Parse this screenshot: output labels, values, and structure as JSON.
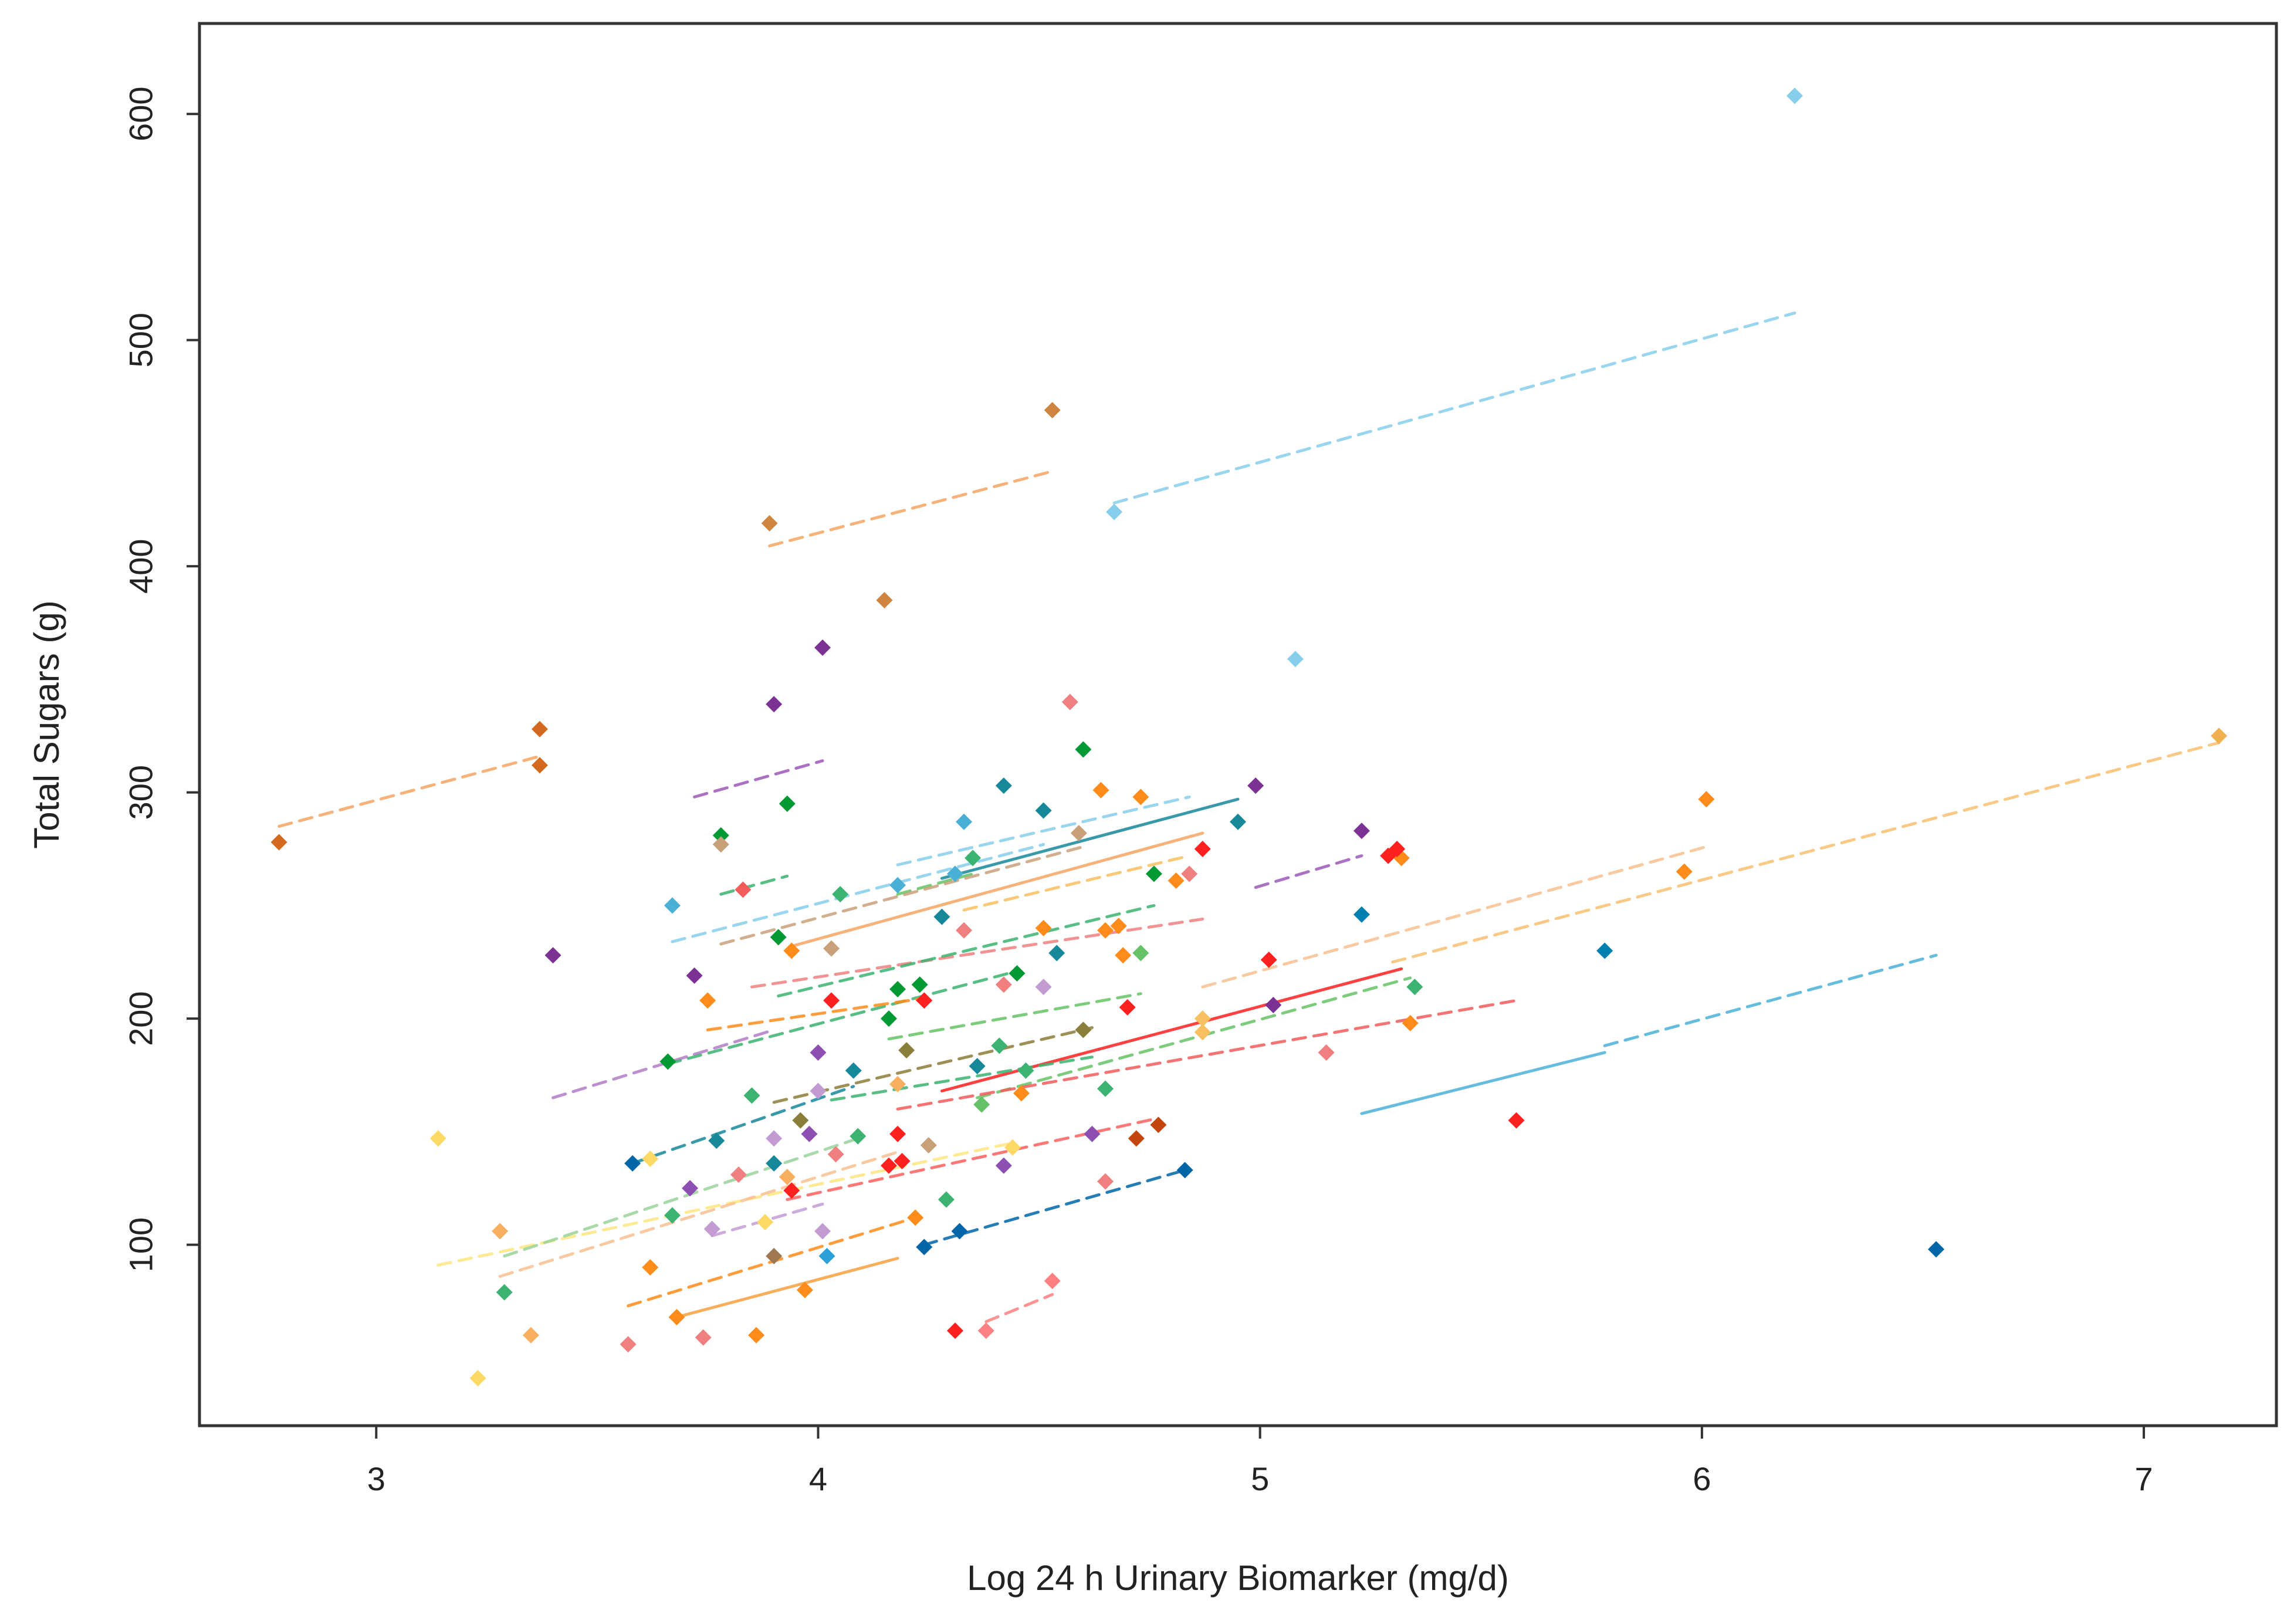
{
  "chart_data": {
    "type": "scatter",
    "title": "",
    "xlabel": "Log 24 h Urinary Biomarker (mg/d)",
    "ylabel": "Total Sugars (g)",
    "xlim": [
      2.6,
      7.3
    ],
    "ylim": [
      20,
      640
    ],
    "x_ticks": [
      3,
      4,
      5,
      6,
      7
    ],
    "y_ticks": [
      100,
      200,
      300,
      400,
      500,
      600
    ],
    "grid": false,
    "legend": "none",
    "points": [
      {
        "x": 6.21,
        "y": 608,
        "c": "#87ceeb"
      },
      {
        "x": 4.67,
        "y": 424,
        "c": "#87ceeb"
      },
      {
        "x": 5.08,
        "y": 359,
        "c": "#87ceeb"
      },
      {
        "x": 4.53,
        "y": 469,
        "c": "#cd853f"
      },
      {
        "x": 3.89,
        "y": 419,
        "c": "#cd853f"
      },
      {
        "x": 4.15,
        "y": 385,
        "c": "#cd853f"
      },
      {
        "x": 2.78,
        "y": 278,
        "c": "#d2691e"
      },
      {
        "x": 3.37,
        "y": 328,
        "c": "#d2691e"
      },
      {
        "x": 3.37,
        "y": 312,
        "c": "#d2691e"
      },
      {
        "x": 4.01,
        "y": 364,
        "c": "#7b3294"
      },
      {
        "x": 3.9,
        "y": 339,
        "c": "#7b3294"
      },
      {
        "x": 3.4,
        "y": 228,
        "c": "#7b3294"
      },
      {
        "x": 3.72,
        "y": 219,
        "c": "#7b3294"
      },
      {
        "x": 4.99,
        "y": 303,
        "c": "#7b3294"
      },
      {
        "x": 5.23,
        "y": 283,
        "c": "#7b3294"
      },
      {
        "x": 5.03,
        "y": 206,
        "c": "#7b3294"
      },
      {
        "x": 4.6,
        "y": 319,
        "c": "#009933"
      },
      {
        "x": 3.93,
        "y": 295,
        "c": "#009933"
      },
      {
        "x": 3.78,
        "y": 281,
        "c": "#009933"
      },
      {
        "x": 4.76,
        "y": 264,
        "c": "#009933"
      },
      {
        "x": 3.91,
        "y": 236,
        "c": "#009933"
      },
      {
        "x": 3.66,
        "y": 181,
        "c": "#009933"
      },
      {
        "x": 4.18,
        "y": 213,
        "c": "#009933"
      },
      {
        "x": 4.23,
        "y": 215,
        "c": "#009933"
      },
      {
        "x": 4.16,
        "y": 200,
        "c": "#009933"
      },
      {
        "x": 4.45,
        "y": 220,
        "c": "#009933"
      },
      {
        "x": 4.42,
        "y": 303,
        "c": "#17879a"
      },
      {
        "x": 4.51,
        "y": 292,
        "c": "#17879a"
      },
      {
        "x": 4.95,
        "y": 287,
        "c": "#17879a"
      },
      {
        "x": 4.28,
        "y": 245,
        "c": "#17879a"
      },
      {
        "x": 4.36,
        "y": 179,
        "c": "#17879a"
      },
      {
        "x": 4.54,
        "y": 229,
        "c": "#17879a"
      },
      {
        "x": 3.77,
        "y": 146,
        "c": "#17879a"
      },
      {
        "x": 3.9,
        "y": 136,
        "c": "#17879a"
      },
      {
        "x": 4.08,
        "y": 177,
        "c": "#17879a"
      },
      {
        "x": 4.33,
        "y": 287,
        "c": "#4bb0d6"
      },
      {
        "x": 3.67,
        "y": 250,
        "c": "#4bb0d6"
      },
      {
        "x": 4.18,
        "y": 259,
        "c": "#4bb0d6"
      },
      {
        "x": 4.31,
        "y": 264,
        "c": "#4bb0d6"
      },
      {
        "x": 5.23,
        "y": 246,
        "c": "#0080b0"
      },
      {
        "x": 5.78,
        "y": 230,
        "c": "#0080b0"
      },
      {
        "x": 6.53,
        "y": 98,
        "c": "#0066a8"
      },
      {
        "x": 4.83,
        "y": 133,
        "c": "#0066a8"
      },
      {
        "x": 4.32,
        "y": 106,
        "c": "#0066a8"
      },
      {
        "x": 4.24,
        "y": 99,
        "c": "#0066a8"
      },
      {
        "x": 3.58,
        "y": 136,
        "c": "#0066a8"
      },
      {
        "x": 4.02,
        "y": 95,
        "c": "#2ba0d9"
      },
      {
        "x": 4.64,
        "y": 301,
        "c": "#ff8c1a"
      },
      {
        "x": 4.73,
        "y": 298,
        "c": "#ff8c1a"
      },
      {
        "x": 4.81,
        "y": 261,
        "c": "#ff8c1a"
      },
      {
        "x": 4.51,
        "y": 240,
        "c": "#ff8c1a"
      },
      {
        "x": 4.65,
        "y": 239,
        "c": "#ff8c1a"
      },
      {
        "x": 4.68,
        "y": 241,
        "c": "#ff8c1a"
      },
      {
        "x": 4.69,
        "y": 228,
        "c": "#ff8c1a"
      },
      {
        "x": 6.01,
        "y": 297,
        "c": "#ff8c1a"
      },
      {
        "x": 5.96,
        "y": 265,
        "c": "#ff8c1a"
      },
      {
        "x": 5.32,
        "y": 271,
        "c": "#ff8c1a"
      },
      {
        "x": 5.34,
        "y": 198,
        "c": "#ff8c1a"
      },
      {
        "x": 3.94,
        "y": 230,
        "c": "#ff8c1a"
      },
      {
        "x": 3.75,
        "y": 208,
        "c": "#ff8c1a"
      },
      {
        "x": 4.46,
        "y": 167,
        "c": "#ff8c1a"
      },
      {
        "x": 4.22,
        "y": 112,
        "c": "#ff8c1a"
      },
      {
        "x": 3.62,
        "y": 90,
        "c": "#ff8c1a"
      },
      {
        "x": 3.97,
        "y": 80,
        "c": "#ff8c1a"
      },
      {
        "x": 3.68,
        "y": 68,
        "c": "#ff8c1a"
      },
      {
        "x": 3.86,
        "y": 60,
        "c": "#ff8c1a"
      },
      {
        "x": 4.87,
        "y": 275,
        "c": "#ff2020"
      },
      {
        "x": 5.29,
        "y": 272,
        "c": "#ff2020"
      },
      {
        "x": 5.31,
        "y": 275,
        "c": "#ff2020"
      },
      {
        "x": 5.02,
        "y": 226,
        "c": "#ff2020"
      },
      {
        "x": 4.7,
        "y": 205,
        "c": "#ff2020"
      },
      {
        "x": 4.24,
        "y": 208,
        "c": "#ff2020"
      },
      {
        "x": 4.03,
        "y": 208,
        "c": "#ff2020"
      },
      {
        "x": 4.18,
        "y": 149,
        "c": "#ff2020"
      },
      {
        "x": 4.16,
        "y": 135,
        "c": "#ff2020"
      },
      {
        "x": 4.19,
        "y": 137,
        "c": "#ff2020"
      },
      {
        "x": 3.94,
        "y": 124,
        "c": "#ff2020"
      },
      {
        "x": 5.58,
        "y": 155,
        "c": "#ff2020"
      },
      {
        "x": 4.31,
        "y": 62,
        "c": "#ff2020"
      },
      {
        "x": 3.83,
        "y": 257,
        "c": "#f25c5c"
      },
      {
        "x": 4.72,
        "y": 147,
        "c": "#c4440e"
      },
      {
        "x": 4.77,
        "y": 153,
        "c": "#c4440e"
      },
      {
        "x": 4.38,
        "y": 62,
        "c": "#ff8080"
      },
      {
        "x": 4.53,
        "y": 84,
        "c": "#ff8080"
      },
      {
        "x": 4.57,
        "y": 340,
        "c": "#f08080"
      },
      {
        "x": 4.84,
        "y": 264,
        "c": "#f08080"
      },
      {
        "x": 4.33,
        "y": 239,
        "c": "#f08080"
      },
      {
        "x": 4.42,
        "y": 215,
        "c": "#f08080"
      },
      {
        "x": 4.04,
        "y": 140,
        "c": "#f08080"
      },
      {
        "x": 3.82,
        "y": 131,
        "c": "#f08080"
      },
      {
        "x": 4.65,
        "y": 128,
        "c": "#f08080"
      },
      {
        "x": 5.15,
        "y": 185,
        "c": "#f08080"
      },
      {
        "x": 3.57,
        "y": 56,
        "c": "#f08080"
      },
      {
        "x": 3.74,
        "y": 59,
        "c": "#f08080"
      },
      {
        "x": 4.59,
        "y": 282,
        "c": "#c8a07a"
      },
      {
        "x": 4.03,
        "y": 231,
        "c": "#c8a07a"
      },
      {
        "x": 3.78,
        "y": 277,
        "c": "#c8a07a"
      },
      {
        "x": 4.25,
        "y": 144,
        "c": "#c8a07a"
      },
      {
        "x": 3.9,
        "y": 95,
        "c": "#a07850"
      },
      {
        "x": 3.96,
        "y": 155,
        "c": "#8b7d3a"
      },
      {
        "x": 4.6,
        "y": 195,
        "c": "#8b7d3a"
      },
      {
        "x": 4.2,
        "y": 186,
        "c": "#8b7d3a"
      },
      {
        "x": 4.73,
        "y": 229,
        "c": "#66c266"
      },
      {
        "x": 4.35,
        "y": 271,
        "c": "#3cb371"
      },
      {
        "x": 4.05,
        "y": 255,
        "c": "#3cb371"
      },
      {
        "x": 3.85,
        "y": 166,
        "c": "#3cb371"
      },
      {
        "x": 4.41,
        "y": 188,
        "c": "#3cb371"
      },
      {
        "x": 4.47,
        "y": 177,
        "c": "#3cb371"
      },
      {
        "x": 4.65,
        "y": 169,
        "c": "#3cb371"
      },
      {
        "x": 4.09,
        "y": 148,
        "c": "#3cb371"
      },
      {
        "x": 4.29,
        "y": 120,
        "c": "#3cb371"
      },
      {
        "x": 3.67,
        "y": 113,
        "c": "#3cb371"
      },
      {
        "x": 3.29,
        "y": 79,
        "c": "#3cb371"
      },
      {
        "x": 5.35,
        "y": 214,
        "c": "#3cb371"
      },
      {
        "x": 4.37,
        "y": 162,
        "c": "#66c266"
      },
      {
        "x": 4.0,
        "y": 185,
        "c": "#8e4fb3"
      },
      {
        "x": 3.98,
        "y": 149,
        "c": "#8e4fb3"
      },
      {
        "x": 4.62,
        "y": 149,
        "c": "#8e4fb3"
      },
      {
        "x": 4.42,
        "y": 135,
        "c": "#8e4fb3"
      },
      {
        "x": 3.71,
        "y": 125,
        "c": "#8e4fb3"
      },
      {
        "x": 4.51,
        "y": 214,
        "c": "#c39bd3"
      },
      {
        "x": 4.0,
        "y": 168,
        "c": "#c39bd3"
      },
      {
        "x": 3.9,
        "y": 147,
        "c": "#c39bd3"
      },
      {
        "x": 4.01,
        "y": 106,
        "c": "#c39bd3"
      },
      {
        "x": 3.76,
        "y": 107,
        "c": "#c39bd3"
      },
      {
        "x": 3.14,
        "y": 147,
        "c": "#ffd966"
      },
      {
        "x": 3.23,
        "y": 41,
        "c": "#ffd966"
      },
      {
        "x": 4.44,
        "y": 143,
        "c": "#ffd966"
      },
      {
        "x": 3.62,
        "y": 138,
        "c": "#ffd966"
      },
      {
        "x": 3.88,
        "y": 110,
        "c": "#ffd966"
      },
      {
        "x": 7.17,
        "y": 325,
        "c": "#f0b050"
      },
      {
        "x": 4.87,
        "y": 200,
        "c": "#f8c060"
      },
      {
        "x": 4.87,
        "y": 194,
        "c": "#f8c060"
      },
      {
        "x": 3.28,
        "y": 106,
        "c": "#f8b060"
      },
      {
        "x": 3.35,
        "y": 60,
        "c": "#f8b060"
      },
      {
        "x": 3.93,
        "y": 130,
        "c": "#f8b060"
      },
      {
        "x": 4.18,
        "y": 171,
        "c": "#f8b060"
      }
    ],
    "trend_lines": [
      {
        "x0": 4.67,
        "y0": 428,
        "x1": 6.21,
        "y1": 512,
        "c": "#87ceeb",
        "dash": true
      },
      {
        "x0": 3.89,
        "y0": 409,
        "x1": 4.53,
        "y1": 442,
        "c": "#f4a460",
        "dash": true
      },
      {
        "x0": 2.78,
        "y0": 285,
        "x1": 3.37,
        "y1": 316,
        "c": "#f4a460",
        "dash": true
      },
      {
        "x0": 3.72,
        "y0": 298,
        "x1": 4.01,
        "y1": 314,
        "c": "#9b59b6",
        "dash": true
      },
      {
        "x0": 3.4,
        "y0": 165,
        "x1": 3.9,
        "y1": 195,
        "c": "#b07cc6",
        "dash": true
      },
      {
        "x0": 4.99,
        "y0": 258,
        "x1": 5.23,
        "y1": 272,
        "c": "#9b59b6",
        "dash": true
      },
      {
        "x0": 3.67,
        "y0": 234,
        "x1": 4.51,
        "y1": 277,
        "c": "#87ceeb",
        "dash": true
      },
      {
        "x0": 4.18,
        "y0": 268,
        "x1": 4.84,
        "y1": 298,
        "c": "#87ceeb",
        "dash": true
      },
      {
        "x0": 4.28,
        "y0": 262,
        "x1": 4.95,
        "y1": 297,
        "c": "#17879a",
        "dash": false
      },
      {
        "x0": 3.78,
        "y0": 255,
        "x1": 3.93,
        "y1": 263,
        "c": "#3cb371",
        "dash": true
      },
      {
        "x0": 4.18,
        "y0": 255,
        "x1": 4.35,
        "y1": 264,
        "c": "#66c266",
        "dash": true
      },
      {
        "x0": 3.94,
        "y0": 232,
        "x1": 4.87,
        "y1": 282,
        "c": "#f4a460",
        "dash": false
      },
      {
        "x0": 3.78,
        "y0": 233,
        "x1": 4.6,
        "y1": 276,
        "c": "#c8a07a",
        "dash": true
      },
      {
        "x0": 4.33,
        "y0": 248,
        "x1": 4.84,
        "y1": 272,
        "c": "#f8c060",
        "dash": true
      },
      {
        "x0": 3.85,
        "y0": 214,
        "x1": 4.87,
        "y1": 244,
        "c": "#f08080",
        "dash": true
      },
      {
        "x0": 3.91,
        "y0": 210,
        "x1": 4.76,
        "y1": 250,
        "c": "#3cb371",
        "dash": true
      },
      {
        "x0": 3.66,
        "y0": 180,
        "x1": 4.45,
        "y1": 221,
        "c": "#3cb371",
        "dash": true
      },
      {
        "x0": 4.16,
        "y0": 191,
        "x1": 4.73,
        "y1": 211,
        "c": "#66c266",
        "dash": true
      },
      {
        "x0": 3.75,
        "y0": 195,
        "x1": 4.24,
        "y1": 209,
        "c": "#ff8c1a",
        "dash": true
      },
      {
        "x0": 3.58,
        "y0": 136,
        "x1": 4.08,
        "y1": 170,
        "c": "#17879a",
        "dash": true
      },
      {
        "x0": 3.9,
        "y0": 163,
        "x1": 4.62,
        "y1": 196,
        "c": "#8b7d3a",
        "dash": true
      },
      {
        "x0": 4.28,
        "y0": 168,
        "x1": 5.32,
        "y1": 222,
        "c": "#ff2020",
        "dash": false
      },
      {
        "x0": 4.36,
        "y0": 165,
        "x1": 5.34,
        "y1": 218,
        "c": "#66c266",
        "dash": true
      },
      {
        "x0": 4.03,
        "y0": 164,
        "x1": 4.62,
        "y1": 183,
        "c": "#3cb371",
        "dash": true
      },
      {
        "x0": 4.18,
        "y0": 160,
        "x1": 5.58,
        "y1": 208,
        "c": "#f25c5c",
        "dash": true
      },
      {
        "x0": 4.87,
        "y0": 214,
        "x1": 6.01,
        "y1": 276,
        "c": "#f8c090",
        "dash": true
      },
      {
        "x0": 5.3,
        "y0": 225,
        "x1": 7.17,
        "y1": 322,
        "c": "#f8c070",
        "dash": true
      },
      {
        "x0": 5.23,
        "y0": 158,
        "x1": 5.78,
        "y1": 185,
        "c": "#4bb0d6",
        "dash": false
      },
      {
        "x0": 5.78,
        "y0": 188,
        "x1": 6.53,
        "y1": 228,
        "c": "#4bb0d6",
        "dash": true
      },
      {
        "x0": 3.93,
        "y0": 120,
        "x1": 4.77,
        "y1": 156,
        "c": "#ff6060",
        "dash": true
      },
      {
        "x0": 4.24,
        "y0": 100,
        "x1": 4.83,
        "y1": 133,
        "c": "#0066a8",
        "dash": true
      },
      {
        "x0": 3.14,
        "y0": 91,
        "x1": 4.44,
        "y1": 145,
        "c": "#ffe680",
        "dash": true
      },
      {
        "x0": 3.28,
        "y0": 86,
        "x1": 4.18,
        "y1": 141,
        "c": "#f8c090",
        "dash": true
      },
      {
        "x0": 3.29,
        "y0": 95,
        "x1": 4.09,
        "y1": 147,
        "c": "#9ad29a",
        "dash": true
      },
      {
        "x0": 3.76,
        "y0": 104,
        "x1": 4.01,
        "y1": 118,
        "c": "#c39bd3",
        "dash": true
      },
      {
        "x0": 3.57,
        "y0": 73,
        "x1": 4.22,
        "y1": 112,
        "c": "#ff8c1a",
        "dash": true
      },
      {
        "x0": 3.68,
        "y0": 68,
        "x1": 4.18,
        "y1": 94,
        "c": "#f8a040",
        "dash": false
      },
      {
        "x0": 4.38,
        "y0": 66,
        "x1": 4.53,
        "y1": 78,
        "c": "#ff8080",
        "dash": true
      }
    ]
  }
}
